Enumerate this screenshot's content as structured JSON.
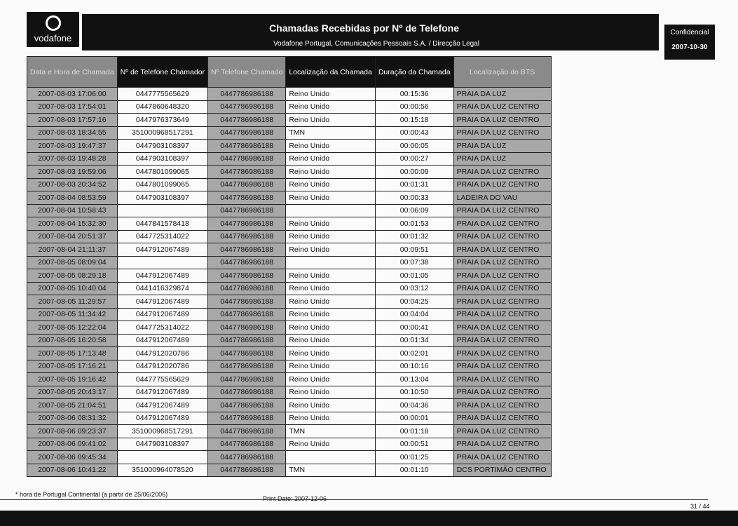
{
  "header": {
    "logo_text": "vodafone",
    "title": "Chamadas Recebidas por Nº de Telefone",
    "subtitle": "Vodafone Portugal, Comunicações Pessoais S.A.  /  Direcção Legal",
    "confidential": "Confidencial",
    "date": "2007-10-30"
  },
  "table": {
    "columns": [
      "Data e Hora de Chamada",
      "Nº de Telefone Chamador",
      "Nº Telefone Chamado",
      "Localização da Chamada",
      "Duração da Chamada",
      "Localização do BTS"
    ],
    "rows": [
      [
        "2007-08-03 17:06:00",
        "0447775565629",
        "0447786986188",
        "Reino Unido",
        "00:15:36",
        "PRAIA DA LUZ"
      ],
      [
        "2007-08-03 17:54:01",
        "0447860648320",
        "0447786986188",
        "Reino Unido",
        "00:00:56",
        "PRAIA DA LUZ CENTRO"
      ],
      [
        "2007-08-03 17:57:16",
        "0447976373649",
        "0447786986188",
        "Reino Unido",
        "00:15:18",
        "PRAIA DA LUZ CENTRO"
      ],
      [
        "2007-08-03 18:34:55",
        "351000968517291",
        "0447786986188",
        "TMN",
        "00:00:43",
        "PRAIA DA LUZ CENTRO"
      ],
      [
        "2007-08-03 19:47:37",
        "0447903108397",
        "0447786986188",
        "Reino Unido",
        "00:00:05",
        "PRAIA DA LUZ"
      ],
      [
        "2007-08-03 19:48:28",
        "0447903108397",
        "0447786986188",
        "Reino Unido",
        "00:00:27",
        "PRAIA DA LUZ"
      ],
      [
        "2007-08-03 19:59:06",
        "0447801099065",
        "0447786986188",
        "Reino Unido",
        "00:00:09",
        "PRAIA DA LUZ CENTRO"
      ],
      [
        "2007-08-03 20:34:52",
        "0447801099065",
        "0447786986188",
        "Reino Unido",
        "00:01:31",
        "PRAIA DA LUZ CENTRO"
      ],
      [
        "2007-08-04 08:53:59",
        "0447903108397",
        "0447786986188",
        "Reino Unido",
        "00:00:33",
        "LADEIRA DO VAU"
      ],
      [
        "2007-08-04 10:58:43",
        "",
        "0447786986188",
        "",
        "00:06:09",
        "PRAIA DA LUZ CENTRO"
      ],
      [
        "2007-08-04 15:32:30",
        "0447841578418",
        "0447786986188",
        "Reino Unido",
        "00:01:53",
        "PRAIA DA LUZ CENTRO"
      ],
      [
        "2007-08-04 20:51:37",
        "0447725314022",
        "0447786986188",
        "Reino Unido",
        "00:01:32",
        "PRAIA DA LUZ CENTRO"
      ],
      [
        "2007-08-04 21:11:37",
        "0447912067489",
        "0447786986188",
        "Reino Unido",
        "00:09:51",
        "PRAIA DA LUZ CENTRO"
      ],
      [
        "2007-08-05 08:09:04",
        "",
        "0447786986188",
        "",
        "00:07:38",
        "PRAIA DA LUZ CENTRO"
      ],
      [
        "2007-08-05 08:29:18",
        "0447912067489",
        "0447786986188",
        "Reino Unido",
        "00:01:05",
        "PRAIA DA LUZ CENTRO"
      ],
      [
        "2007-08-05 10:40:04",
        "0441416329874",
        "0447786986188",
        "Reino Unido",
        "00:03:12",
        "PRAIA DA LUZ CENTRO"
      ],
      [
        "2007-08-05 11:29:57",
        "0447912067489",
        "0447786986188",
        "Reino Unido",
        "00:04:25",
        "PRAIA DA LUZ CENTRO"
      ],
      [
        "2007-08-05 11:34:42",
        "0447912067489",
        "0447786986188",
        "Reino Unido",
        "00:04:04",
        "PRAIA DA LUZ CENTRO"
      ],
      [
        "2007-08-05 12:22:04",
        "0447725314022",
        "0447786986188",
        "Reino Unido",
        "00:00:41",
        "PRAIA DA LUZ CENTRO"
      ],
      [
        "2007-08-05 16:20:58",
        "0447912067489",
        "0447786986188",
        "Reino Unido",
        "00:01:34",
        "PRAIA DA LUZ CENTRO"
      ],
      [
        "2007-08-05 17:13:48",
        "0447912020786",
        "0447786986188",
        "Reino Unido",
        "00:02:01",
        "PRAIA DA LUZ CENTRO"
      ],
      [
        "2007-08-05 17:16:21",
        "0447912020786",
        "0447786986188",
        "Reino Unido",
        "00:10:16",
        "PRAIA DA LUZ CENTRO"
      ],
      [
        "2007-08-05 19:16:42",
        "0447775565629",
        "0447786986188",
        "Reino Unido",
        "00:13:04",
        "PRAIA DA LUZ CENTRO"
      ],
      [
        "2007-08-05 20:43:17",
        "0447912067489",
        "0447786986188",
        "Reino Unido",
        "00:10:50",
        "PRAIA DA LUZ CENTRO"
      ],
      [
        "2007-08-05 21:04:51",
        "0447912067489",
        "0447786986188",
        "Reino Unido",
        "00:04:36",
        "PRAIA DA LUZ CENTRO"
      ],
      [
        "2007-08-06 08:31:32",
        "0447912067489",
        "0447786986188",
        "Reino Unido",
        "00:00:01",
        "PRAIA DA LUZ CENTRO"
      ],
      [
        "2007-08-06 09:23:37",
        "351000968517291",
        "0447786986188",
        "TMN",
        "00:01:18",
        "PRAIA DA LUZ CENTRO"
      ],
      [
        "2007-08-06 09:41:02",
        "0447903108397",
        "0447786986188",
        "Reino Unido",
        "00:00:51",
        "PRAIA DA LUZ CENTRO"
      ],
      [
        "2007-08-06 09:45:34",
        "",
        "0447786986188",
        "",
        "00:01:25",
        "PRAIA DA LUZ CENTRO"
      ],
      [
        "2007-08-06 10:41:22",
        "351000964078520",
        "0447786986188",
        "TMN",
        "00:01:10",
        "DCS PORTIMÃO CENTRO"
      ]
    ]
  },
  "footer": {
    "note": "* hora de Portugal Continental (a partir de 25/06/2006)",
    "print_date": "Print Date:  2007-12-06",
    "page": "31 / 44"
  }
}
